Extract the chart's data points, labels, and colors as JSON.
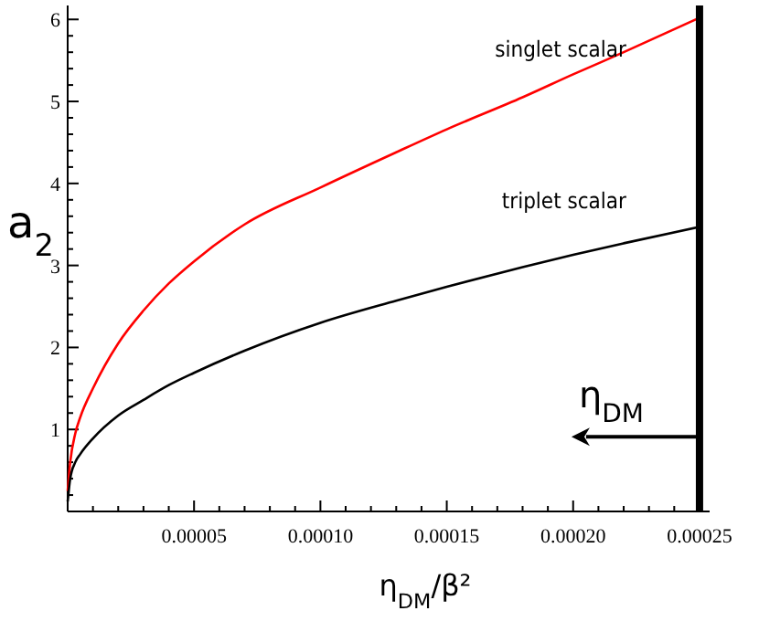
{
  "chart_data": {
    "type": "line",
    "xlabel": "η$_{DM}$/β²",
    "ylabel": "a$_{2}$",
    "xlim": [
      0,
      0.000254
    ],
    "ylim": [
      0,
      6.17
    ],
    "xticks": [
      {
        "value": 1e-05,
        "label": null
      },
      {
        "value": 2e-05,
        "label": null
      },
      {
        "value": 3e-05,
        "label": null
      },
      {
        "value": 4e-05,
        "label": null
      },
      {
        "value": 5e-05,
        "label": "0.00005"
      },
      {
        "value": 6e-05,
        "label": null
      },
      {
        "value": 7e-05,
        "label": null
      },
      {
        "value": 8e-05,
        "label": null
      },
      {
        "value": 9e-05,
        "label": null
      },
      {
        "value": 0.0001,
        "label": "0.00010"
      },
      {
        "value": 0.00011,
        "label": null
      },
      {
        "value": 0.00012,
        "label": null
      },
      {
        "value": 0.00013,
        "label": null
      },
      {
        "value": 0.00014,
        "label": null
      },
      {
        "value": 0.00015,
        "label": "0.00015"
      },
      {
        "value": 0.00016,
        "label": null
      },
      {
        "value": 0.00017,
        "label": null
      },
      {
        "value": 0.00018,
        "label": null
      },
      {
        "value": 0.00019,
        "label": null
      },
      {
        "value": 0.0002,
        "label": "0.00020"
      },
      {
        "value": 0.00021,
        "label": null
      },
      {
        "value": 0.00022,
        "label": null
      },
      {
        "value": 0.00023,
        "label": null
      },
      {
        "value": 0.00024,
        "label": null
      },
      {
        "value": 0.00025,
        "label": "0.00025"
      }
    ],
    "yticks": [
      {
        "value": 0.2,
        "label": null
      },
      {
        "value": 0.4,
        "label": null
      },
      {
        "value": 0.6,
        "label": null
      },
      {
        "value": 0.8,
        "label": null
      },
      1,
      {
        "value": 1.2,
        "label": null
      },
      {
        "value": 1.4,
        "label": null
      },
      {
        "value": 1.6,
        "label": null
      },
      {
        "value": 1.8,
        "label": null
      },
      2,
      {
        "value": 2.2,
        "label": null
      },
      {
        "value": 2.4,
        "label": null
      },
      {
        "value": 2.6,
        "label": null
      },
      {
        "value": 2.8,
        "label": null
      },
      3,
      {
        "value": 3.2,
        "label": null
      },
      {
        "value": 3.4,
        "label": null
      },
      {
        "value": 3.6,
        "label": null
      },
      {
        "value": 3.8,
        "label": null
      },
      4,
      {
        "value": 4.2,
        "label": null
      },
      {
        "value": 4.4,
        "label": null
      },
      {
        "value": 4.6,
        "label": null
      },
      {
        "value": 4.8,
        "label": null
      },
      5,
      {
        "value": 5.2,
        "label": null
      },
      {
        "value": 5.4,
        "label": null
      },
      {
        "value": 5.6,
        "label": null
      },
      {
        "value": 5.8,
        "label": null
      },
      6
    ],
    "x": [
      0,
      1e-06,
      3e-06,
      5e-06,
      1e-05,
      2e-05,
      3e-05,
      4e-05,
      5e-05,
      7e-05,
      0.0001,
      0.00013,
      0.00015,
      0.00018,
      0.0002,
      0.00022,
      0.00025
    ],
    "series": [
      {
        "name": "singlet scalar",
        "color": "#ff0000",
        "values": [
          0.25,
          0.6,
          0.95,
          1.15,
          1.5,
          2.05,
          2.45,
          2.78,
          3.05,
          3.5,
          3.95,
          4.38,
          4.66,
          5.05,
          5.33,
          5.6,
          6.02
        ]
      },
      {
        "name": "triplet scalar",
        "color": "#000000",
        "values": [
          0.12,
          0.4,
          0.6,
          0.7,
          0.89,
          1.17,
          1.36,
          1.54,
          1.69,
          1.96,
          2.3,
          2.57,
          2.74,
          2.98,
          3.13,
          3.27,
          3.47
        ]
      }
    ],
    "ref_lines": [
      {
        "axis": "x",
        "value": 0.00025,
        "color": "#000000"
      }
    ],
    "annotations": [
      {
        "text": "η$_{DM}$",
        "x": 0.00025,
        "y": 0.91
      }
    ],
    "grid": false,
    "marker": "none",
    "line_style": "solid"
  }
}
